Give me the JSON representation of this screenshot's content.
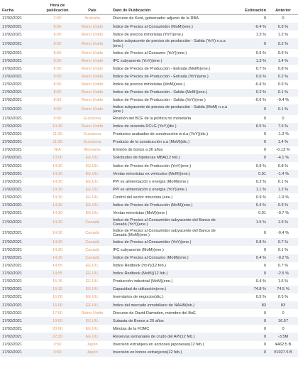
{
  "table": {
    "header": [
      "Fecha",
      "Hora de publicación",
      "País",
      "Dato de Publicación",
      "Estimación",
      "Anterior"
    ],
    "rows": [
      [
        "17/02/2021",
        "2:00",
        "Australia",
        "Discurso de Kent, gobernador adjunto de la RBA",
        "0",
        "0"
      ],
      [
        "17/02/2021",
        "8:00",
        "Reino Unido",
        "Índice de Precios al Consumidor (MoM)(ene.)",
        "-0.4 %",
        "0.3 %"
      ],
      [
        "17/02/2021",
        "8:00",
        "Reino Unido",
        "Índice de precios minoristas (YoY)(ene.)",
        "1.3 %",
        "1.2 %"
      ],
      [
        "17/02/2021",
        "8:00",
        "Reino Unido",
        "Índice subyacente de precios de producción - Salida (YoY) n.s.a (ene.)",
        "0",
        "0.2 %"
      ],
      [
        "17/02/2021",
        "8:00",
        "Reino Unido",
        "Índice de Precios al Consumo (YoY)(ene.)",
        "0.5 %",
        "0.6 %"
      ],
      [
        "17/02/2021",
        "8:00",
        "Reino Unido",
        "IPC subyacente (YoY)(ene.)",
        "1.3 %",
        "1.4 %"
      ],
      [
        "17/02/2021",
        "8:00",
        "Reino Unido",
        "Índice de Precios de Producción - Entrada (MoM)(ene.)",
        "0.7 %",
        "0.8 %"
      ],
      [
        "17/02/2021",
        "8:00",
        "Reino Unido",
        "Índice de Precios de Producción - Entrada (YoY)(ene.)",
        "0.6 %",
        "0.2 %"
      ],
      [
        "17/02/2021",
        "8:00",
        "Reino Unido",
        "Índice de precios minoristas (MoM)(ene.)",
        "-0.4 %",
        "0.6 %"
      ],
      [
        "17/02/2021",
        "8:00",
        "Reino Unido",
        "Índice de Precios de Producción - Salida (MoM)(ene.)",
        "0.2 %",
        "0.1 %"
      ],
      [
        "17/02/2021",
        "8:00",
        "Reino Unido",
        "Índice de Precios de Producción - Salida (YoY)(ene.)",
        "-0.6 %",
        "-0.4 %"
      ],
      [
        "17/02/2021",
        "8:00",
        "Reino Unido",
        "Índice subyacente de precios de producción - Salida (MoM) n.s.a (ene.)",
        "0",
        "0.1 %"
      ],
      [
        "17/02/2021",
        "9:00",
        "Eurozona",
        "Reunión del BCE de la política no monetaria",
        "0",
        "0"
      ],
      [
        "17/02/2021",
        "10:30",
        "Reino Unido",
        "Índice de vivienda DCLG (YoY)(dic.)",
        "6.5 %",
        "7.6 %"
      ],
      [
        "17/02/2021",
        "11:00",
        "Eurozona",
        "Productos acabados de construcción w.d.a (YoY)(dic.)",
        "0",
        "-1.3 %"
      ],
      [
        "17/02/2021",
        "11:00",
        "Eurozona",
        "Producto de la construcción s.a (MoM)(dic.)",
        "0",
        "1.4 %"
      ],
      [
        "17/02/2021",
        "N/A",
        "Alemania",
        "Emisión de bonos a 30 años",
        "0",
        "-0.13 %"
      ],
      [
        "17/02/2021",
        "13:00",
        "EE.UU.",
        "Solicitudes de hipotecas MBA(12 feb.)",
        "0",
        "-4.1 %"
      ],
      [
        "17/02/2021",
        "14:30",
        "EE.UU.",
        "Índice de Precios de Producción (YoY)(ene.)",
        "0.9 %",
        "0.8 %"
      ],
      [
        "17/02/2021",
        "14:30",
        "EE.UU.",
        "Ventas minoristas ex vehículos (MoM)(ene.)",
        "0.01",
        "-1.4 %"
      ],
      [
        "17/02/2021",
        "14:30",
        "EE.UU.",
        "PPI ex alimentación y energía (MoM)(ene.)",
        "0.2 %",
        "0.1 %"
      ],
      [
        "17/02/2021",
        "14:30",
        "EE.UU.",
        "PPI ex alimentación y energía (YoY)(ene.)",
        "1.1 %",
        "1.2 %"
      ],
      [
        "17/02/2021",
        "14:30",
        "EE.UU.",
        "Control del sector minorista (ene.)",
        "0.9 %",
        "-1.9 %"
      ],
      [
        "17/02/2021",
        "14:30",
        "EE.UU.",
        "Índice de Precios de Producción (MoM)(ene.)",
        "0.4 %",
        "0.3 %"
      ],
      [
        "17/02/2021",
        "14:30",
        "EE.UU.",
        "Ventas minoristas (MoM)(ene.)",
        "0.01",
        "-0.7 %"
      ],
      [
        "17/02/2021",
        "14:30",
        "Canadá",
        "Índice de Precios al Consumidor subyacente del Banco de Canadá (YoY)(ene.)",
        "1.5 %",
        "1.5 %"
      ],
      [
        "17/02/2021",
        "14:30",
        "Canadá",
        "Índice de Precios al Consumidor subyacente del Banco de Canadá (MoM)(ene.)",
        "0",
        "-0.4 %"
      ],
      [
        "17/02/2021",
        "14:30",
        "Canadá",
        "Índice de Precios al Consumidor (YoY)(ene.)",
        "0.8 %",
        "0.7 %"
      ],
      [
        "17/02/2021",
        "14:30",
        "Canadá",
        "IPC subyacente (MoM)(ene.)",
        "0",
        "0.1 %"
      ],
      [
        "17/02/2021",
        "14:30",
        "Canadá",
        "Índice de Precios al Consumo (MoM)(ene.)",
        "0.4 %",
        "-0.2 %"
      ],
      [
        "17/02/2021",
        "14:55",
        "EE.UU.",
        "Índice Redbook (YoY)(12 feb.)",
        "0",
        "0.7 %"
      ],
      [
        "17/02/2021",
        "14:55",
        "EE.UU.",
        "Índice Redbook (MoM)(12 feb.)",
        "0",
        "-2.5 %"
      ],
      [
        "17/02/2021",
        "15:15",
        "EE.UU.",
        "Producción industrial (MoM)(ene.)",
        "0.4 %",
        "1.6 %"
      ],
      [
        "17/02/2021",
        "15:15",
        "EE.UU.",
        "Capacidad de utilización(ene.)",
        "74.8 %",
        "74.5 %"
      ],
      [
        "17/02/2021",
        "16:00",
        "EE.UU.",
        "Inventarios de negocios(dic.)",
        "0.5 %",
        "0.5 %"
      ],
      [
        "17/02/2021",
        "16:00",
        "EE.UU.",
        "Índice del mercado inmobiliario de NAHB(feb.)",
        "83",
        "83"
      ],
      [
        "17/02/2021",
        "17:00",
        "Reino Unido",
        "Discurso de David Ramsden, miembro del BoE.",
        "0",
        "0"
      ],
      [
        "17/02/2021",
        "19:00",
        "EE.UU.",
        "Subasta de Bonos a 20 años",
        "0",
        "16.57"
      ],
      [
        "17/02/2021",
        "20:00",
        "EE.UU.",
        "Minutas de la FOMC",
        "0",
        "0"
      ],
      [
        "17/02/2021",
        "22:30",
        "EE.UU.",
        "Reservas semanales de crudo del API(12 feb.)",
        "0",
        "-3.5M"
      ],
      [
        "17/02/2021",
        "0:50",
        "Japón",
        "Inversión extranjera en acciones japonesas(12 feb.)",
        "0",
        "¥462.5 B"
      ],
      [
        "17/02/2021",
        "0:50",
        "Japón",
        "Inversión en bonos extranjeros(12 feb.)",
        "0",
        "¥1027.5 B"
      ]
    ]
  }
}
